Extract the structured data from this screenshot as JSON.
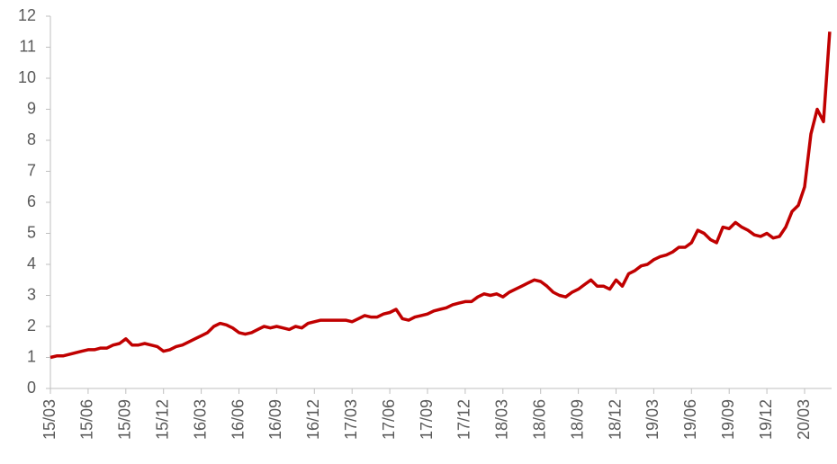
{
  "chart_data": {
    "type": "line",
    "categories": [
      "15/03",
      null,
      null,
      null,
      null,
      null,
      "15/06",
      null,
      null,
      null,
      null,
      null,
      "15/09",
      null,
      null,
      null,
      null,
      null,
      "15/12",
      null,
      null,
      null,
      null,
      null,
      "16/03",
      null,
      null,
      null,
      null,
      null,
      "16/06",
      null,
      null,
      null,
      null,
      null,
      "16/09",
      null,
      null,
      null,
      null,
      null,
      "16/12",
      null,
      null,
      null,
      null,
      null,
      "17/03",
      null,
      null,
      null,
      null,
      null,
      "17/06",
      null,
      null,
      null,
      null,
      null,
      "17/09",
      null,
      null,
      null,
      null,
      null,
      "17/12",
      null,
      null,
      null,
      null,
      null,
      "18/03",
      null,
      null,
      null,
      null,
      null,
      "18/06",
      null,
      null,
      null,
      null,
      null,
      "18/09",
      null,
      null,
      null,
      null,
      null,
      "18/12",
      null,
      null,
      null,
      null,
      null,
      "19/03",
      null,
      null,
      null,
      null,
      null,
      "19/06",
      null,
      null,
      null,
      null,
      null,
      "19/09",
      null,
      null,
      null,
      null,
      null,
      "19/12",
      null,
      null,
      null,
      null,
      null,
      "20/03",
      null,
      null,
      null,
      null
    ],
    "values": [
      1.0,
      1.05,
      1.05,
      1.1,
      1.15,
      1.2,
      1.25,
      1.25,
      1.3,
      1.3,
      1.4,
      1.45,
      1.6,
      1.4,
      1.4,
      1.45,
      1.4,
      1.35,
      1.2,
      1.25,
      1.35,
      1.4,
      1.5,
      1.6,
      1.7,
      1.8,
      2.0,
      2.1,
      2.05,
      1.95,
      1.8,
      1.75,
      1.8,
      1.9,
      2.0,
      1.95,
      2.0,
      1.95,
      1.9,
      2.0,
      1.95,
      2.1,
      2.15,
      2.2,
      2.2,
      2.2,
      2.2,
      2.2,
      2.15,
      2.25,
      2.35,
      2.3,
      2.3,
      2.4,
      2.45,
      2.55,
      2.25,
      2.2,
      2.3,
      2.35,
      2.4,
      2.5,
      2.55,
      2.6,
      2.7,
      2.75,
      2.8,
      2.8,
      2.95,
      3.05,
      3.0,
      3.05,
      2.95,
      3.1,
      3.2,
      3.3,
      3.4,
      3.5,
      3.45,
      3.3,
      3.1,
      3.0,
      2.95,
      3.1,
      3.2,
      3.35,
      3.5,
      3.3,
      3.3,
      3.2,
      3.5,
      3.3,
      3.7,
      3.8,
      3.95,
      4.0,
      4.15,
      4.25,
      4.3,
      4.4,
      4.55,
      4.55,
      4.7,
      5.1,
      5.0,
      4.8,
      4.7,
      5.2,
      5.15,
      5.35,
      5.2,
      5.1,
      4.95,
      4.9,
      5.0,
      4.85,
      4.9,
      5.2,
      5.7,
      5.9,
      6.5,
      8.2,
      9.0,
      8.6,
      11.5
    ],
    "color": "#c00000",
    "ylim": [
      0,
      12
    ],
    "yticks": [
      0,
      1,
      2,
      3,
      4,
      5,
      6,
      7,
      8,
      9,
      10,
      11,
      12
    ]
  }
}
